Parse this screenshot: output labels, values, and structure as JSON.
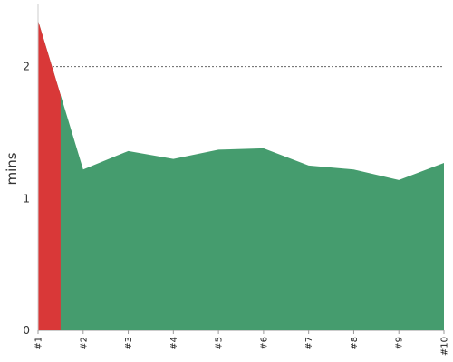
{
  "chart_data": {
    "type": "area",
    "categories": [
      "#1",
      "#2",
      "#3",
      "#4",
      "#5",
      "#6",
      "#7",
      "#8",
      "#9",
      "#10"
    ],
    "values": [
      2.35,
      1.22,
      1.36,
      1.3,
      1.37,
      1.38,
      1.25,
      1.22,
      1.14,
      1.27
    ],
    "highlight": {
      "from": "#1",
      "to_fraction": 0.5,
      "color": "#d93838"
    },
    "xlabel": "",
    "ylabel": "mins",
    "yticks": [
      0,
      1,
      2
    ],
    "ylim": [
      0,
      2.45
    ],
    "grid": "horizontal dashed",
    "colors": {
      "area": "#459c6e",
      "highlight": "#d93838",
      "grid": "#666666",
      "axis": "#cccccc"
    }
  }
}
